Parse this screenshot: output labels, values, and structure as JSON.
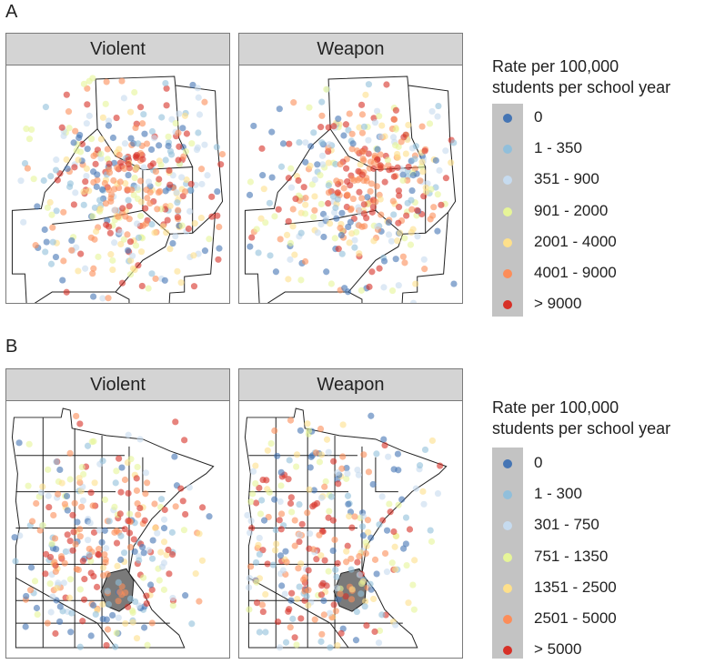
{
  "panels": [
    {
      "label": "A",
      "facets": [
        "Violent",
        "Weapon"
      ],
      "legend": {
        "title_line1": "Rate per 100,000",
        "title_line2": "students per school year",
        "items": [
          "0",
          "1 - 350",
          "351 - 900",
          "901 - 2000",
          "2001 - 4000",
          "4001 - 9000",
          "> 9000"
        ]
      }
    },
    {
      "label": "B",
      "facets": [
        "Violent",
        "Weapon"
      ],
      "legend": {
        "title_line1": "Rate per 100,000",
        "title_line2": "students per school year",
        "items": [
          "0",
          "1 - 300",
          "301 - 750",
          "751 - 1350",
          "1351 - 2500",
          "2501 - 5000",
          "> 5000"
        ]
      }
    }
  ],
  "colors": [
    "#4575b4",
    "#91bfdb",
    "#c6dbef",
    "#e6f598",
    "#fee08b",
    "#fc8d59",
    "#d73027"
  ],
  "metro_fill": "#7a7a7a"
}
